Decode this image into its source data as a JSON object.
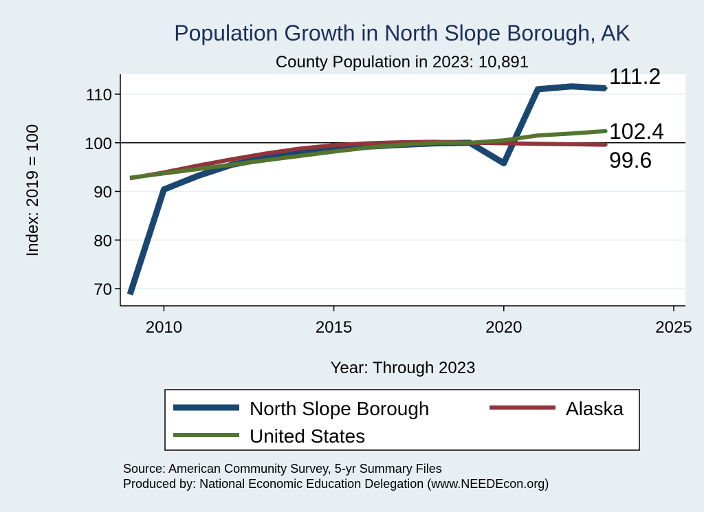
{
  "chart_data": {
    "type": "line",
    "title": "Population Growth in North Slope Borough, AK",
    "subtitle": "County Population in 2023: 10,891",
    "xlabel": "Year: Through 2023",
    "ylabel": "Index: 2019 = 100",
    "xlim": [
      2009,
      2025.3
    ],
    "ylim": [
      66,
      114
    ],
    "xticks": [
      2010,
      2015,
      2020,
      2025
    ],
    "yticks": [
      70,
      80,
      90,
      100,
      110
    ],
    "reference_line": 100,
    "x": [
      2009,
      2010,
      2011,
      2012,
      2013,
      2014,
      2015,
      2016,
      2017,
      2018,
      2019,
      2020,
      2021,
      2022,
      2023
    ],
    "series": [
      {
        "name": "North Slope Borough",
        "color": "#1a476f",
        "values": [
          68.8,
          90.4,
          93.2,
          95.5,
          96.8,
          97.9,
          98.6,
          99.2,
          99.6,
          99.9,
          100.0,
          95.8,
          111.0,
          111.6,
          111.2
        ],
        "end_label": "111.2"
      },
      {
        "name": "Alaska",
        "color": "#90353b",
        "values": [
          92.7,
          93.9,
          95.3,
          96.6,
          97.8,
          98.8,
          99.5,
          99.9,
          100.1,
          100.2,
          100.0,
          99.9,
          99.8,
          99.7,
          99.6
        ],
        "end_label": "99.6"
      },
      {
        "name": "United States",
        "color": "#55752f",
        "values": [
          92.8,
          93.7,
          94.6,
          95.5,
          96.4,
          97.3,
          98.2,
          99.0,
          99.6,
          100.0,
          100.0,
          100.5,
          101.5,
          101.9,
          102.4
        ],
        "end_label": "102.4"
      }
    ],
    "legend": {
      "position": "bottom",
      "entries": [
        "North Slope Borough",
        "Alaska",
        "United States"
      ]
    }
  },
  "notes": {
    "source": "Source: American Community Survey, 5-yr Summary Files",
    "produced_by": "Produced by: National Economic Education Delegation (www.NEEDEcon.org)"
  }
}
